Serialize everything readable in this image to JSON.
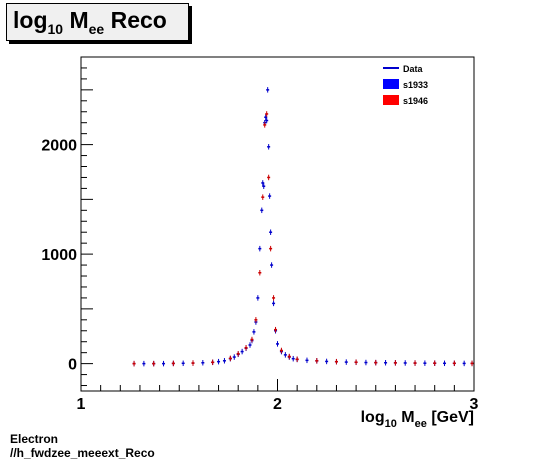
{
  "chart_data": {
    "type": "scatter",
    "title": {
      "main": "log",
      "sub1": "10",
      "mid": " M",
      "sub2": "ee",
      "end": " Reco"
    },
    "xlabel": {
      "main": "log",
      "sub1": "10",
      "mid": " M",
      "sub2": "ee",
      "end": " [GeV]"
    },
    "ylabel": "",
    "xlim": [
      1,
      3
    ],
    "ylim": [
      -250,
      2800
    ],
    "x_ticks": [
      "1",
      "2",
      "3"
    ],
    "y_ticks": [
      "0",
      "1000",
      "2000"
    ],
    "legend_position": "top-right",
    "legend": [
      {
        "label": "Data",
        "marker": "line",
        "color": "#0000cc"
      },
      {
        "label": "s1933",
        "marker": "box",
        "color": "#0000ff"
      },
      {
        "label": "s1946",
        "marker": "box",
        "color": "#ff0000"
      }
    ],
    "series": [
      {
        "name": "s1933",
        "color": "#0000cc",
        "points": [
          [
            1.27,
            0
          ],
          [
            1.32,
            0
          ],
          [
            1.37,
            0
          ],
          [
            1.42,
            0
          ],
          [
            1.47,
            2
          ],
          [
            1.52,
            3
          ],
          [
            1.57,
            5
          ],
          [
            1.62,
            8
          ],
          [
            1.67,
            12
          ],
          [
            1.7,
            18
          ],
          [
            1.73,
            26
          ],
          [
            1.76,
            45
          ],
          [
            1.78,
            60
          ],
          [
            1.8,
            85
          ],
          [
            1.82,
            110
          ],
          [
            1.84,
            140
          ],
          [
            1.86,
            170
          ],
          [
            1.87,
            210
          ],
          [
            1.88,
            290
          ],
          [
            1.89,
            380
          ],
          [
            1.9,
            600
          ],
          [
            1.91,
            1050
          ],
          [
            1.92,
            1400
          ],
          [
            1.925,
            1650
          ],
          [
            1.93,
            1620
          ],
          [
            1.935,
            2200
          ],
          [
            1.94,
            2250
          ],
          [
            1.945,
            2220
          ],
          [
            1.95,
            2500
          ],
          [
            1.955,
            1980
          ],
          [
            1.96,
            1530
          ],
          [
            1.965,
            1200
          ],
          [
            1.97,
            900
          ],
          [
            1.98,
            550
          ],
          [
            1.99,
            300
          ],
          [
            2.0,
            180
          ],
          [
            2.02,
            110
          ],
          [
            2.04,
            80
          ],
          [
            2.06,
            60
          ],
          [
            2.08,
            45
          ],
          [
            2.1,
            38
          ],
          [
            2.15,
            30
          ],
          [
            2.2,
            25
          ],
          [
            2.25,
            20
          ],
          [
            2.3,
            17
          ],
          [
            2.35,
            14
          ],
          [
            2.4,
            12
          ],
          [
            2.45,
            10
          ],
          [
            2.5,
            9
          ],
          [
            2.55,
            8
          ],
          [
            2.6,
            7
          ],
          [
            2.65,
            6
          ],
          [
            2.7,
            5
          ],
          [
            2.75,
            4
          ],
          [
            2.8,
            4
          ],
          [
            2.85,
            3
          ],
          [
            2.9,
            3
          ],
          [
            2.95,
            2
          ],
          [
            2.99,
            2
          ]
        ],
        "yerr": 25
      },
      {
        "name": "s1946",
        "color": "#cc0000",
        "points": [
          [
            1.27,
            0
          ],
          [
            1.37,
            0
          ],
          [
            1.47,
            2
          ],
          [
            1.57,
            5
          ],
          [
            1.67,
            12
          ],
          [
            1.76,
            48
          ],
          [
            1.8,
            90
          ],
          [
            1.84,
            145
          ],
          [
            1.87,
            220
          ],
          [
            1.89,
            400
          ],
          [
            1.91,
            830
          ],
          [
            1.925,
            1520
          ],
          [
            1.935,
            2180
          ],
          [
            1.945,
            2280
          ],
          [
            1.955,
            1700
          ],
          [
            1.965,
            1050
          ],
          [
            1.98,
            600
          ],
          [
            1.99,
            310
          ],
          [
            2.02,
            120
          ],
          [
            2.06,
            65
          ],
          [
            2.1,
            40
          ],
          [
            2.2,
            26
          ],
          [
            2.3,
            18
          ],
          [
            2.4,
            13
          ],
          [
            2.5,
            9
          ],
          [
            2.6,
            7
          ],
          [
            2.7,
            5
          ],
          [
            2.8,
            4
          ],
          [
            2.9,
            3
          ],
          [
            2.99,
            2
          ]
        ],
        "yerr": 25
      }
    ]
  },
  "footer": {
    "line1": "Electron",
    "line2": "//h_fwdzee_meeext_Reco"
  }
}
